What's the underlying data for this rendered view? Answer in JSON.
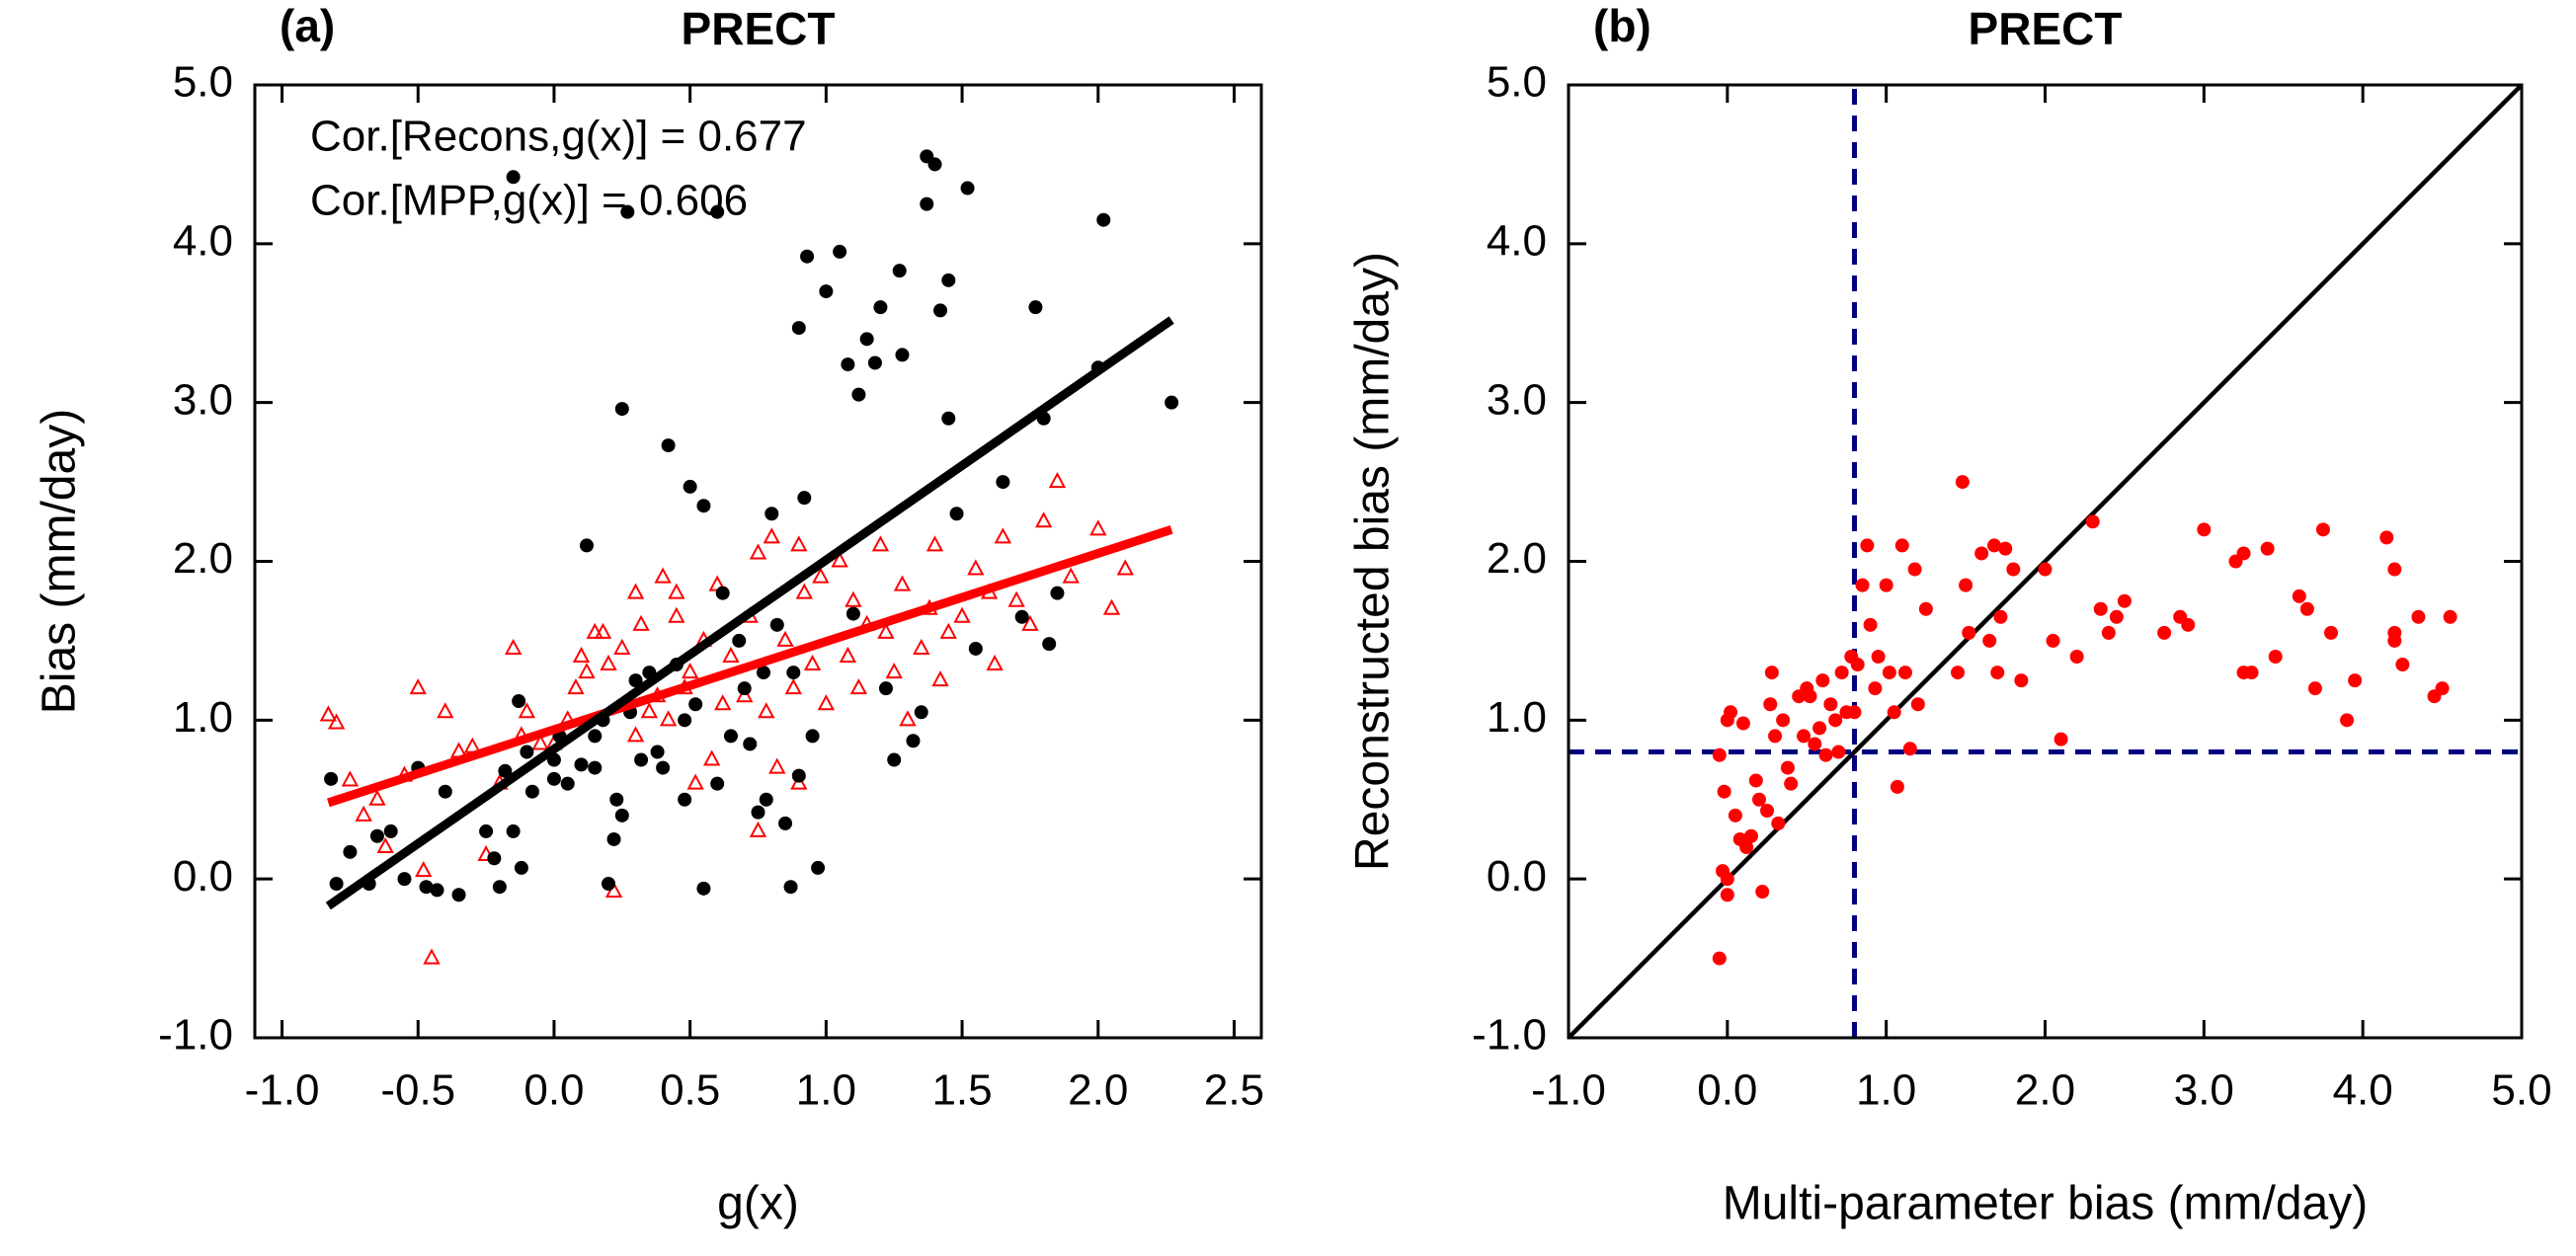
{
  "chart_data": [
    {
      "type": "scatter",
      "panel_label": "(a)",
      "title": "PRECT",
      "x_label": "g(x)",
      "y_label": "Bias (mm/day)",
      "xlim": [
        -1.1,
        2.6
      ],
      "ylim": [
        -1,
        5
      ],
      "xticks": [
        {
          "value": -1,
          "label": "-1.0"
        },
        -0.5,
        {
          "value": 0,
          "label": "0.0"
        },
        0.5,
        {
          "value": 1,
          "label": "1.0"
        },
        1.5,
        {
          "value": 2,
          "label": "2.0"
        },
        2.5
      ],
      "yticks": [
        {
          "value": -1,
          "label": "-1.0"
        },
        {
          "value": 0,
          "label": "0.0"
        },
        {
          "value": 1,
          "label": "1.0"
        },
        {
          "value": 2,
          "label": "2.0"
        },
        {
          "value": 3,
          "label": "3.0"
        },
        {
          "value": 4,
          "label": "4.0"
        },
        {
          "value": 5,
          "label": "5.0"
        }
      ],
      "annotations": [
        {
          "text": "Cor.[Recons,g(x)] = 0.677",
          "color": "#ff0000"
        },
        {
          "text": "Cor.[MPP,g(x)] = 0.606",
          "color": "#000000"
        }
      ],
      "series": [
        {
          "color": "#ff0000",
          "marker": "triangle",
          "x": [
            -0.83,
            -0.8,
            -0.75,
            -0.7,
            -0.65,
            -0.62,
            -0.55,
            -0.5,
            -0.48,
            -0.45,
            -0.4,
            -0.35,
            -0.3,
            -0.25,
            -0.2,
            -0.15,
            -0.12,
            -0.1,
            -0.05,
            0.0,
            0.05,
            0.08,
            0.1,
            0.12,
            0.15,
            0.2,
            0.22,
            0.25,
            0.3,
            0.32,
            0.35,
            0.38,
            0.4,
            0.42,
            0.45,
            0.48,
            0.5,
            0.52,
            0.55,
            0.58,
            0.6,
            0.62,
            0.65,
            0.7,
            0.72,
            0.75,
            0.78,
            0.8,
            0.82,
            0.85,
            0.88,
            0.9,
            0.92,
            0.95,
            0.98,
            1.0,
            1.05,
            1.08,
            1.1,
            1.12,
            1.15,
            1.2,
            1.22,
            1.25,
            1.28,
            1.3,
            1.35,
            1.38,
            1.4,
            1.42,
            1.45,
            1.5,
            1.55,
            1.6,
            1.62,
            1.65,
            1.7,
            1.75,
            1.8,
            1.85,
            1.9,
            2.0,
            2.05,
            2.1,
            0.75,
            0.3,
            0.45,
            0.18,
            0.9
          ],
          "values": [
            1.03,
            0.98,
            0.62,
            0.4,
            0.5,
            0.2,
            0.65,
            1.2,
            0.05,
            -0.5,
            1.05,
            0.8,
            0.83,
            0.15,
            0.6,
            1.45,
            0.9,
            1.05,
            0.85,
            0.85,
            1.0,
            1.2,
            1.4,
            1.3,
            1.55,
            1.35,
            -0.08,
            1.45,
            0.9,
            1.6,
            1.05,
            1.15,
            1.9,
            1.0,
            1.65,
            1.2,
            1.3,
            0.6,
            1.5,
            0.75,
            1.85,
            1.1,
            1.4,
            1.15,
            1.65,
            0.3,
            1.05,
            2.15,
            0.7,
            1.5,
            1.2,
            0.6,
            1.8,
            1.35,
            1.9,
            1.1,
            2.0,
            1.4,
            1.75,
            1.2,
            1.6,
            2.1,
            1.55,
            1.3,
            1.85,
            1.0,
            1.45,
            1.7,
            2.1,
            1.25,
            1.55,
            1.65,
            1.95,
            1.8,
            1.35,
            2.15,
            1.75,
            1.6,
            2.25,
            2.5,
            1.9,
            2.2,
            1.7,
            1.95,
            2.05,
            1.8,
            1.8,
            1.55,
            2.1
          ]
        },
        {
          "color": "#000000",
          "marker": "circle",
          "x": [
            -0.82,
            -0.8,
            -0.75,
            -0.68,
            -0.65,
            -0.6,
            -0.55,
            -0.5,
            -0.47,
            -0.43,
            -0.4,
            -0.35,
            -0.25,
            -0.22,
            -0.2,
            -0.18,
            -0.15,
            -0.13,
            -0.12,
            -0.1,
            -0.15,
            -0.08,
            0.0,
            0.0,
            0.02,
            0.05,
            0.1,
            0.12,
            0.15,
            0.15,
            0.18,
            0.2,
            0.22,
            0.23,
            0.25,
            0.25,
            0.28,
            0.3,
            0.32,
            0.35,
            0.38,
            0.4,
            0.42,
            0.45,
            0.48,
            0.48,
            0.5,
            0.52,
            0.55,
            0.55,
            0.6,
            0.6,
            0.62,
            0.65,
            0.68,
            0.7,
            0.72,
            0.75,
            0.77,
            0.78,
            0.8,
            0.82,
            0.85,
            0.87,
            0.88,
            0.9,
            0.9,
            0.92,
            0.95,
            0.93,
            0.97,
            1.0,
            1.05,
            1.08,
            1.1,
            1.12,
            1.15,
            1.18,
            1.2,
            1.22,
            1.25,
            1.27,
            1.28,
            1.32,
            1.35,
            1.37,
            1.37,
            1.4,
            1.42,
            1.45,
            1.45,
            1.48,
            1.52,
            1.55,
            1.65,
            1.72,
            1.77,
            1.8,
            1.82,
            1.85,
            2.0,
            2.02,
            2.27,
            0.27
          ],
          "values": [
            0.63,
            -0.03,
            0.17,
            -0.03,
            0.27,
            0.3,
            0.0,
            0.7,
            -0.05,
            -0.07,
            0.55,
            -0.1,
            0.3,
            0.13,
            -0.05,
            0.68,
            0.3,
            1.12,
            0.07,
            0.8,
            4.42,
            0.55,
            0.63,
            0.75,
            0.9,
            0.6,
            0.72,
            2.1,
            0.7,
            0.9,
            1.0,
            -0.03,
            0.25,
            0.5,
            0.4,
            2.96,
            1.05,
            1.25,
            0.75,
            1.3,
            0.8,
            0.7,
            2.73,
            1.35,
            1.0,
            0.5,
            2.47,
            1.1,
            2.35,
            -0.06,
            0.6,
            4.2,
            1.8,
            0.9,
            1.5,
            1.2,
            0.85,
            0.42,
            1.3,
            0.5,
            2.3,
            1.6,
            0.35,
            -0.05,
            1.3,
            0.65,
            3.47,
            2.4,
            0.9,
            3.92,
            0.07,
            3.7,
            3.95,
            3.24,
            1.67,
            3.05,
            3.4,
            3.25,
            3.6,
            1.2,
            0.75,
            3.83,
            3.3,
            0.87,
            1.05,
            4.55,
            4.25,
            4.5,
            3.58,
            3.77,
            2.9,
            2.3,
            4.35,
            1.45,
            2.5,
            1.65,
            3.6,
            2.9,
            1.48,
            1.8,
            3.22,
            4.15,
            3.0,
            4.2
          ]
        },
        {
          "color": "#ff0000",
          "marker": "none",
          "line_width": 9,
          "x": [
            -0.83,
            2.27
          ],
          "values": [
            0.48,
            2.2
          ]
        },
        {
          "color": "#000000",
          "marker": "none",
          "line_width": 9,
          "x": [
            -0.83,
            2.27
          ],
          "values": [
            -0.17,
            3.52
          ]
        }
      ]
    },
    {
      "type": "scatter",
      "panel_label": "(b)",
      "title": "PRECT",
      "x_label": "Multi-parameter bias (mm/day)",
      "y_label": "Reconstructed bias (mm/day)",
      "xlim": [
        -1,
        5
      ],
      "ylim": [
        -1,
        5
      ],
      "xticks": [
        {
          "value": -1,
          "label": "-1.0"
        },
        {
          "value": 0,
          "label": "0.0"
        },
        {
          "value": 1,
          "label": "1.0"
        },
        {
          "value": 2,
          "label": "2.0"
        },
        {
          "value": 3,
          "label": "3.0"
        },
        {
          "value": 4,
          "label": "4.0"
        },
        {
          "value": 5,
          "label": "5.0"
        }
      ],
      "yticks": [
        {
          "value": -1,
          "label": "-1.0"
        },
        {
          "value": 0,
          "label": "0.0"
        },
        {
          "value": 1,
          "label": "1.0"
        },
        {
          "value": 2,
          "label": "2.0"
        },
        {
          "value": 3,
          "label": "3.0"
        },
        {
          "value": 4,
          "label": "4.0"
        },
        {
          "value": 5,
          "label": "5.0"
        }
      ],
      "annotations": [],
      "series": [
        {
          "color": "#000000",
          "marker": "none",
          "line_width": 4.5,
          "x": [
            -1,
            5
          ],
          "values": [
            -1,
            5
          ]
        },
        {
          "color": "#000080",
          "marker": "none",
          "line_width": 5,
          "dash": true,
          "x": [
            0.8,
            0.8
          ],
          "values": [
            -1,
            5
          ]
        },
        {
          "color": "#000080",
          "marker": "none",
          "line_width": 5,
          "dash": true,
          "x": [
            -1,
            5
          ],
          "values": [
            0.8,
            0.8
          ]
        },
        {
          "color": "#ff0000",
          "marker": "circle",
          "x": [
            -0.05,
            -0.03,
            0.0,
            0.0,
            -0.02,
            -0.05,
            0.0,
            0.02,
            0.05,
            0.08,
            0.1,
            0.12,
            0.15,
            0.18,
            0.2,
            0.22,
            0.25,
            0.27,
            0.28,
            0.3,
            0.32,
            0.35,
            0.38,
            0.4,
            0.45,
            0.48,
            0.5,
            0.52,
            0.55,
            0.58,
            0.6,
            0.62,
            0.65,
            0.68,
            0.7,
            0.72,
            0.75,
            0.78,
            0.8,
            0.82,
            0.85,
            0.88,
            0.9,
            0.93,
            0.95,
            1.0,
            1.02,
            1.05,
            1.07,
            1.1,
            1.12,
            1.15,
            1.18,
            1.2,
            1.25,
            1.45,
            1.48,
            1.5,
            1.52,
            1.6,
            1.65,
            1.68,
            1.7,
            1.72,
            1.75,
            1.8,
            1.85,
            2.0,
            2.05,
            2.1,
            2.2,
            2.3,
            2.35,
            2.4,
            2.45,
            2.5,
            2.75,
            2.85,
            2.9,
            3.0,
            3.2,
            3.25,
            3.25,
            3.3,
            3.4,
            3.45,
            3.6,
            3.65,
            3.7,
            3.75,
            3.8,
            3.9,
            3.95,
            4.15,
            4.2,
            4.2,
            4.25,
            4.2,
            4.35,
            4.45,
            4.5,
            4.55
          ],
          "values": [
            -0.5,
            0.05,
            -0.1,
            0.0,
            0.55,
            0.78,
            1.0,
            1.05,
            0.4,
            0.25,
            0.98,
            0.2,
            0.27,
            0.62,
            0.5,
            -0.08,
            0.43,
            1.1,
            1.3,
            0.9,
            0.35,
            1.0,
            0.7,
            0.6,
            1.15,
            0.9,
            1.2,
            1.15,
            0.85,
            0.95,
            1.25,
            0.78,
            1.1,
            1.0,
            0.8,
            1.3,
            1.05,
            1.4,
            1.05,
            1.35,
            1.85,
            2.1,
            1.6,
            1.2,
            1.4,
            1.85,
            1.3,
            1.05,
            0.58,
            2.1,
            1.3,
            0.82,
            1.95,
            1.1,
            1.7,
            1.3,
            2.5,
            1.85,
            1.55,
            2.05,
            1.5,
            2.1,
            1.3,
            1.65,
            2.08,
            1.95,
            1.25,
            1.95,
            1.5,
            0.88,
            1.4,
            2.25,
            1.7,
            1.55,
            1.65,
            1.75,
            1.55,
            1.65,
            1.6,
            2.2,
            2.0,
            2.05,
            1.3,
            1.3,
            2.08,
            1.4,
            1.78,
            1.7,
            1.2,
            2.2,
            1.55,
            1.0,
            1.25,
            2.15,
            1.5,
            1.55,
            1.35,
            1.95,
            1.65,
            1.15,
            1.2,
            1.65
          ]
        }
      ]
    }
  ]
}
